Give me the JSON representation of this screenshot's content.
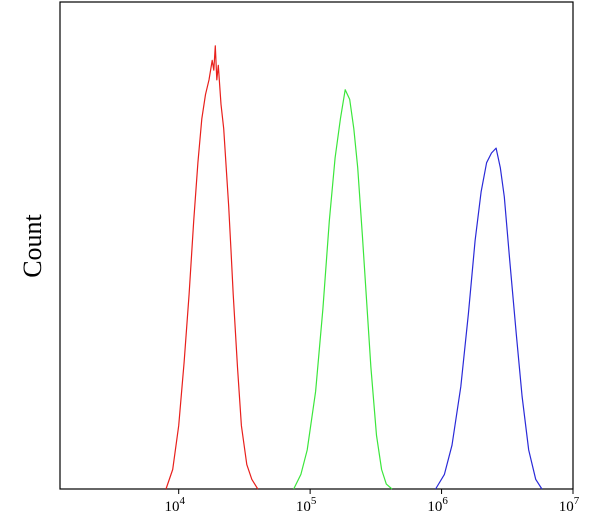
{
  "chart_data": {
    "type": "line",
    "title": "",
    "xlabel": "",
    "ylabel": "Count",
    "x_scale": "log",
    "xlim": [
      1250,
      10000000
    ],
    "ylim": [
      0,
      1
    ],
    "grid": false,
    "legend": "none",
    "x_ticks": [
      {
        "value": 10000,
        "base": "10",
        "exp": "4"
      },
      {
        "value": 100000,
        "base": "10",
        "exp": "5"
      },
      {
        "value": 1000000,
        "base": "10",
        "exp": "6"
      },
      {
        "value": 10000000,
        "base": "10",
        "exp": "7"
      }
    ],
    "series": [
      {
        "color": "#e8201c",
        "x": [
          8000,
          9000,
          10000,
          11000,
          12000,
          13000,
          14000,
          15000,
          16000,
          17000,
          18000,
          18500,
          19000,
          19500,
          20000,
          21000,
          22000,
          23000,
          24000,
          25000,
          26000,
          28000,
          30000,
          33000,
          36000,
          40000
        ],
        "y": [
          0.0,
          0.04,
          0.13,
          0.26,
          0.4,
          0.55,
          0.67,
          0.76,
          0.81,
          0.84,
          0.88,
          0.86,
          0.91,
          0.84,
          0.87,
          0.79,
          0.74,
          0.66,
          0.58,
          0.49,
          0.4,
          0.25,
          0.13,
          0.05,
          0.02,
          0.0
        ]
      },
      {
        "color": "#3ce63c",
        "x": [
          75000,
          85000,
          95000,
          110000,
          125000,
          140000,
          155000,
          170000,
          185000,
          200000,
          215000,
          230000,
          250000,
          270000,
          290000,
          320000,
          350000,
          380000,
          420000
        ],
        "y": [
          0.0,
          0.03,
          0.08,
          0.2,
          0.37,
          0.55,
          0.68,
          0.76,
          0.82,
          0.8,
          0.74,
          0.66,
          0.52,
          0.38,
          0.25,
          0.11,
          0.04,
          0.01,
          0.0
        ]
      },
      {
        "color": "#2a2ad8",
        "x": [
          900000,
          1050000,
          1200000,
          1400000,
          1600000,
          1800000,
          2000000,
          2200000,
          2400000,
          2600000,
          2800000,
          3000000,
          3300000,
          3700000,
          4100000,
          4600000,
          5200000,
          5800000
        ],
        "y": [
          0.0,
          0.03,
          0.09,
          0.21,
          0.36,
          0.51,
          0.61,
          0.67,
          0.69,
          0.7,
          0.66,
          0.6,
          0.47,
          0.32,
          0.19,
          0.08,
          0.02,
          0.0
        ]
      }
    ]
  }
}
